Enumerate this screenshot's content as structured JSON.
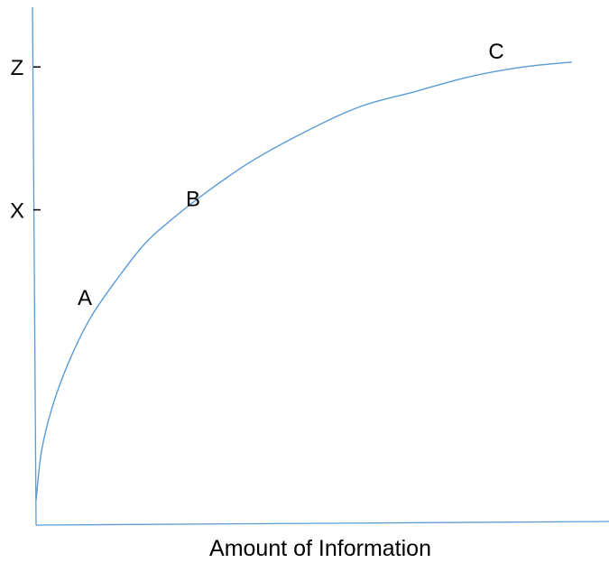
{
  "chart_data": {
    "type": "line",
    "title": "",
    "xlabel": "Amount of Information",
    "ylabel": "",
    "grid": false,
    "legend": "none",
    "xlim": [
      0,
      100
    ],
    "ylim": [
      0,
      100
    ],
    "y_ticks": [
      {
        "label": "X",
        "value": 64
      },
      {
        "label": "Z",
        "value": 93
      }
    ],
    "series": [
      {
        "color": "#5b9bd5",
        "x": [
          0,
          1,
          3,
          6,
          10,
          15,
          20,
          25,
          32,
          40,
          50,
          60,
          70,
          80,
          90,
          99
        ],
        "y": [
          5,
          15,
          24,
          33,
          42,
          50,
          57,
          62,
          68,
          74,
          80,
          85,
          88,
          91,
          93,
          94
        ]
      }
    ],
    "annotations": [
      {
        "label": "A",
        "x": 11,
        "y": 44
      },
      {
        "label": "B",
        "x": 31,
        "y": 64
      },
      {
        "label": "C",
        "x": 87,
        "y": 94
      }
    ],
    "axis_color": "#5b9bd5"
  }
}
